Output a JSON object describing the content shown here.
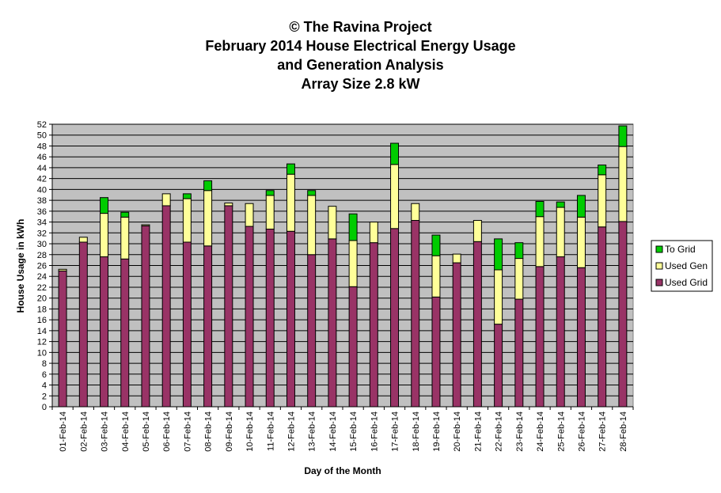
{
  "chart_data": {
    "type": "bar",
    "stacked": true,
    "title_lines": [
      "© The Ravina Project",
      "February 2014 House Electrical Energy Usage",
      "and Generation Analysis",
      "Array Size 2.8 kW"
    ],
    "xlabel": "Day of the Month",
    "ylabel": "House Usage in kWh",
    "ylim": [
      0,
      52
    ],
    "ytick_step": 2,
    "grid": true,
    "legend_position": "right",
    "categories": [
      "01-Feb-14",
      "02-Feb-14",
      "03-Feb-14",
      "04-Feb-14",
      "05-Feb-14",
      "06-Feb-14",
      "07-Feb-14",
      "08-Feb-14",
      "09-Feb-14",
      "10-Feb-14",
      "11-Feb-14",
      "12-Feb-14",
      "13-Feb-14",
      "14-Feb-14",
      "15-Feb-14",
      "16-Feb-14",
      "17-Feb-14",
      "18-Feb-14",
      "19-Feb-14",
      "20-Feb-14",
      "21-Feb-14",
      "22-Feb-14",
      "23-Feb-14",
      "24-Feb-14",
      "25-Feb-14",
      "26-Feb-14",
      "27-Feb-14",
      "28-Feb-14"
    ],
    "series": [
      {
        "name": "Used Grid",
        "color": "#993366",
        "values": [
          25.0,
          30.3,
          27.6,
          27.2,
          33.3,
          37.0,
          30.3,
          29.6,
          37.0,
          33.2,
          32.7,
          32.3,
          28.0,
          30.9,
          22.1,
          30.2,
          32.8,
          34.3,
          20.2,
          26.5,
          30.4,
          15.2,
          19.8,
          25.8,
          27.6,
          25.6,
          33.1,
          34.1
        ]
      },
      {
        "name": "Used Gen",
        "color": "#FFFF99",
        "values": [
          0.3,
          0.9,
          8.0,
          7.7,
          0.2,
          2.2,
          8.0,
          10.2,
          0.5,
          4.2,
          6.2,
          10.5,
          10.9,
          6.0,
          8.5,
          3.8,
          11.8,
          3.1,
          7.6,
          1.6,
          3.9,
          10.0,
          7.5,
          9.2,
          9.1,
          9.3,
          9.6,
          13.8
        ]
      },
      {
        "name": "To Grid",
        "color": "#00CC00",
        "values": [
          0.0,
          0.0,
          2.9,
          0.9,
          0.0,
          0.0,
          0.9,
          1.8,
          0.0,
          0.0,
          0.9,
          1.9,
          0.9,
          0.0,
          4.9,
          0.0,
          3.9,
          0.0,
          3.8,
          0.0,
          0.0,
          5.7,
          2.9,
          2.8,
          1.0,
          4.0,
          1.8,
          3.8
        ]
      }
    ]
  }
}
